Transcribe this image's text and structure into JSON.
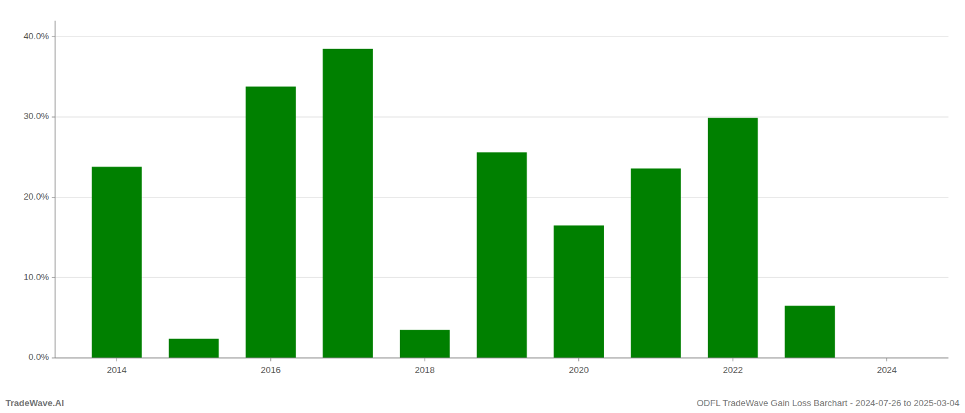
{
  "chart_data": {
    "type": "bar",
    "x": [
      2014,
      2015,
      2016,
      2017,
      2018,
      2019,
      2020,
      2021,
      2022,
      2023,
      2024
    ],
    "values": [
      0.238,
      0.024,
      0.338,
      0.385,
      0.035,
      0.256,
      0.165,
      0.236,
      0.299,
      0.065,
      0.0
    ],
    "color": "#008000",
    "xlim": [
      2013.2,
      2024.8
    ],
    "xticks": [
      2014,
      2016,
      2018,
      2020,
      2022,
      2024
    ],
    "ylim": [
      0.0,
      0.42
    ],
    "yticks": [
      {
        "value": 0.0,
        "label": "0.0%"
      },
      {
        "value": 0.1,
        "label": "10.0%"
      },
      {
        "value": 0.2,
        "label": "20.0%"
      },
      {
        "value": 0.3,
        "label": "30.0%"
      },
      {
        "value": 0.4,
        "label": "40.0%"
      }
    ],
    "grid": true,
    "annotations": [
      "TradeWave.AI",
      "ODFL TradeWave Gain Loss Barchart - 2024-07-26 to 2025-03-04"
    ]
  }
}
